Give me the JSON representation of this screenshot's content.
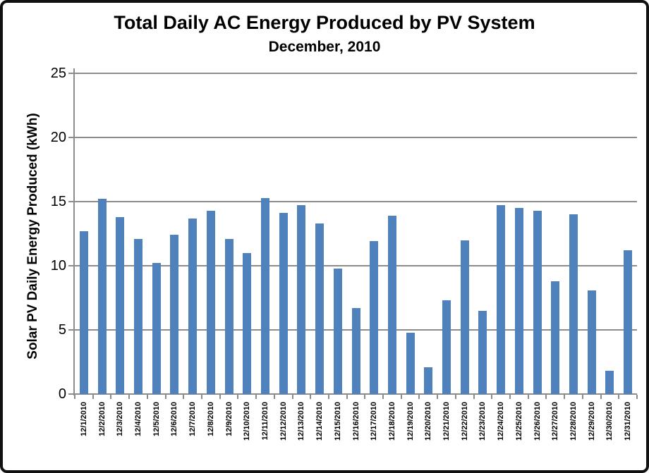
{
  "chart_data": {
    "type": "bar",
    "title": "Total Daily AC Energy Produced by PV System",
    "subtitle": "December, 2010",
    "xlabel": "",
    "ylabel": "Solar PV Daily Energy Produced (kWh)",
    "categories": [
      "12/1/2010",
      "12/2/2010",
      "12/3/2010",
      "12/4/2010",
      "12/5/2010",
      "12/6/2010",
      "12/7/2010",
      "12/8/2010",
      "12/9/2010",
      "12/10/2010",
      "12/11/2010",
      "12/12/2010",
      "12/13/2010",
      "12/14/2010",
      "12/15/2010",
      "12/16/2010",
      "12/17/2010",
      "12/18/2010",
      "12/19/2010",
      "12/20/2010",
      "12/21/2010",
      "12/22/2010",
      "12/23/2010",
      "12/24/2010",
      "12/25/2010",
      "12/26/2010",
      "12/27/2010",
      "12/28/2010",
      "12/29/2010",
      "12/30/2010",
      "12/31/2010"
    ],
    "values": [
      12.7,
      15.2,
      13.8,
      12.1,
      10.2,
      12.4,
      13.7,
      14.3,
      12.1,
      11.0,
      15.3,
      14.1,
      14.7,
      13.3,
      9.8,
      6.7,
      11.9,
      13.9,
      4.8,
      2.1,
      7.3,
      12.0,
      6.5,
      14.7,
      14.5,
      14.3,
      8.8,
      14.0,
      8.1,
      1.8,
      11.2
    ],
    "ylim": [
      0,
      25
    ],
    "yticks": [
      0,
      5,
      10,
      15,
      20,
      25
    ],
    "grid": true,
    "legend": false,
    "bar_color": "#4F81BD",
    "grid_color": "#8C8C8C",
    "axis_color": "#8C8C8C",
    "text_color": "#000000",
    "frame_color": "#111111",
    "background": "#FFFFFF"
  }
}
